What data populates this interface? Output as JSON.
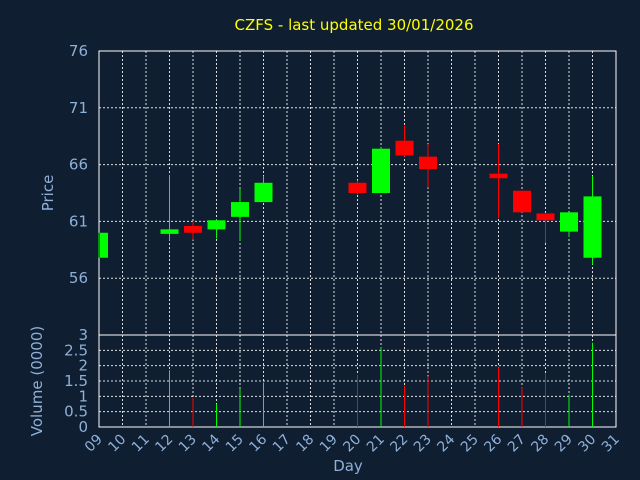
{
  "chart_data": [
    {
      "type": "candlestick",
      "title": "CZFS - last updated 30/01/2026",
      "ylabel": "Price",
      "ylim": [
        51,
        76
      ],
      "yticks": [
        "76",
        "71",
        "66",
        "61",
        "56"
      ],
      "grid": true,
      "candles": [
        {
          "day": "09",
          "open": 57.8,
          "high": 60.0,
          "low": 57.8,
          "close": 60.0,
          "direction": "up"
        },
        {
          "day": "12",
          "open": 59.9,
          "high": 65.1,
          "low": 59.3,
          "close": 60.3,
          "direction": "up"
        },
        {
          "day": "13",
          "open": 60.6,
          "high": 61.0,
          "low": 59.4,
          "close": 60.0,
          "direction": "down"
        },
        {
          "day": "14",
          "open": 60.3,
          "high": 61.2,
          "low": 59.5,
          "close": 61.1,
          "direction": "up"
        },
        {
          "day": "15",
          "open": 61.4,
          "high": 63.9,
          "low": 59.3,
          "close": 62.7,
          "direction": "up"
        },
        {
          "day": "16",
          "open": 62.7,
          "high": 65.0,
          "low": 62.7,
          "close": 64.4,
          "direction": "up"
        },
        {
          "day": "20",
          "open": 64.4,
          "high": 64.6,
          "low": 63.4,
          "close": 63.5,
          "direction": "down"
        },
        {
          "day": "21",
          "open": 63.5,
          "high": 67.5,
          "low": 63.5,
          "close": 67.4,
          "direction": "up"
        },
        {
          "day": "22",
          "open": 68.1,
          "high": 69.4,
          "low": 66.7,
          "close": 66.8,
          "direction": "down"
        },
        {
          "day": "23",
          "open": 66.7,
          "high": 67.8,
          "low": 64.0,
          "close": 65.6,
          "direction": "down"
        },
        {
          "day": "26",
          "open": 65.2,
          "high": 67.8,
          "low": 61.3,
          "close": 64.8,
          "direction": "down"
        },
        {
          "day": "27",
          "open": 63.7,
          "high": 63.7,
          "low": 61.8,
          "close": 61.8,
          "direction": "down"
        },
        {
          "day": "28",
          "open": 61.7,
          "high": 61.7,
          "low": 59.1,
          "close": 61.1,
          "direction": "down"
        },
        {
          "day": "29",
          "open": 60.1,
          "high": 61.8,
          "low": 59.6,
          "close": 61.8,
          "direction": "up"
        },
        {
          "day": "30",
          "open": 57.8,
          "high": 65.0,
          "low": 57.2,
          "close": 63.2,
          "direction": "up"
        }
      ],
      "colors": {
        "up": "#00ff00",
        "down": "#ff0000",
        "background": "#0f1e30",
        "text": "#8fb0d8",
        "title": "#ffff00",
        "grid": "#ffffff"
      }
    },
    {
      "type": "bar",
      "ylabel": "Volume (0000)",
      "xlabel": "Day",
      "ylim": [
        0,
        3
      ],
      "yticks": [
        "3",
        "2.5",
        "2",
        "1.5",
        "1",
        "0.5",
        "0"
      ],
      "grid": true,
      "categories": [
        "09",
        "10",
        "11",
        "12",
        "13",
        "14",
        "15",
        "16",
        "17",
        "18",
        "19",
        "20",
        "21",
        "22",
        "23",
        "24",
        "25",
        "26",
        "27",
        "28",
        "29",
        "30",
        "31"
      ],
      "volumes": [
        {
          "day": "12",
          "value": 1.85,
          "direction": "up"
        },
        {
          "day": "13",
          "value": 0.95,
          "direction": "down"
        },
        {
          "day": "14",
          "value": 0.75,
          "direction": "up"
        },
        {
          "day": "15",
          "value": 1.25,
          "direction": "up"
        },
        {
          "day": "16",
          "value": 1.45,
          "direction": "up"
        },
        {
          "day": "20",
          "value": 1.7,
          "direction": "down"
        },
        {
          "day": "21",
          "value": 2.6,
          "direction": "up"
        },
        {
          "day": "22",
          "value": 1.35,
          "direction": "down"
        },
        {
          "day": "23",
          "value": 1.65,
          "direction": "down"
        },
        {
          "day": "26",
          "value": 1.95,
          "direction": "down"
        },
        {
          "day": "27",
          "value": 1.3,
          "direction": "down"
        },
        {
          "day": "28",
          "value": 1.75,
          "direction": "down"
        },
        {
          "day": "29",
          "value": 1.05,
          "direction": "up"
        },
        {
          "day": "30",
          "value": 2.75,
          "direction": "up"
        }
      ]
    }
  ]
}
